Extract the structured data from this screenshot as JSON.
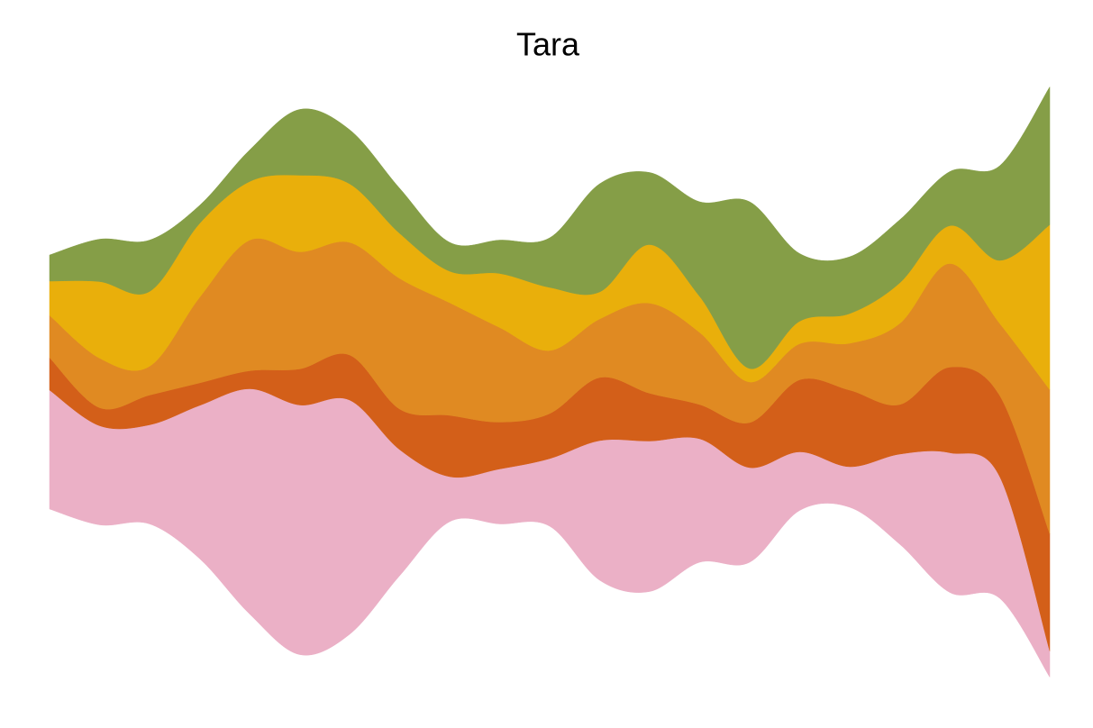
{
  "chart_data": {
    "type": "streamgraph",
    "title": "Tara",
    "categories": [
      null,
      null,
      null,
      null,
      null,
      null,
      null,
      null,
      null,
      null,
      null,
      null,
      null,
      null,
      null,
      null,
      null,
      null,
      null,
      null,
      null
    ],
    "series": [
      {
        "color": "#ebb0c6",
        "values": [
          132,
          110,
          110,
          170,
          250,
          277,
          260,
          140,
          50,
          61,
          75,
          155,
          167,
          137,
          105,
          65,
          45,
          100,
          155,
          135,
          29
        ]
      },
      {
        "color": "#d35f19",
        "values": [
          36,
          20,
          33,
          25,
          20,
          40,
          50,
          45,
          68,
          52,
          50,
          70,
          53,
          38,
          50,
          80,
          85,
          55,
          95,
          90,
          130
        ]
      },
      {
        "color": "#e08a22",
        "values": [
          47,
          55,
          32,
          95,
          145,
          130,
          125,
          145,
          125,
          105,
          70,
          65,
          100,
          80,
          45,
          40,
          52,
          90,
          115,
          80,
          160
        ]
      },
      {
        "color": "#e9af0b",
        "values": [
          38,
          85,
          83,
          82,
          65,
          85,
          65,
          50,
          35,
          60,
          70,
          30,
          65,
          40,
          15,
          25,
          33,
          45,
          42,
          70,
          183
        ]
      },
      {
        "color": "#859e47",
        "values": [
          29,
          47,
          57,
          20,
          35,
          73,
          60,
          50,
          32,
          37,
          55,
          120,
          80,
          105,
          185,
          75,
          63,
          70,
          60,
          105,
          153
        ]
      }
    ]
  }
}
